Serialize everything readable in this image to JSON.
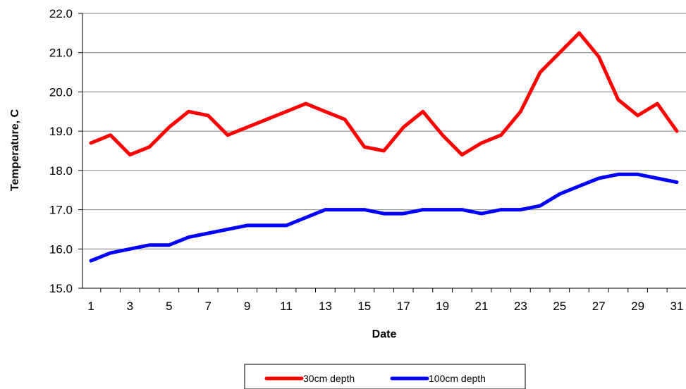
{
  "chart_data": {
    "type": "line",
    "title": "",
    "xlabel": "Date",
    "ylabel": "Temperature, C",
    "ylim": [
      15.0,
      22.0
    ],
    "yticks": [
      "15.0",
      "16.0",
      "17.0",
      "18.0",
      "19.0",
      "20.0",
      "21.0",
      "22.0"
    ],
    "xlim": [
      1,
      31
    ],
    "xticks": [
      "1",
      "3",
      "5",
      "7",
      "9",
      "11",
      "13",
      "15",
      "17",
      "19",
      "21",
      "23",
      "25",
      "27",
      "29",
      "31"
    ],
    "x": [
      1,
      2,
      3,
      4,
      5,
      6,
      7,
      8,
      9,
      10,
      11,
      12,
      13,
      14,
      15,
      16,
      17,
      18,
      19,
      20,
      21,
      22,
      23,
      24,
      25,
      26,
      27,
      28,
      29,
      30,
      31
    ],
    "grid": "horizontal",
    "legend_position": "bottom",
    "series": [
      {
        "name": "30cm depth",
        "color": "#ff0000",
        "values": [
          18.7,
          18.9,
          18.4,
          18.6,
          19.1,
          19.5,
          19.4,
          18.9,
          19.1,
          19.3,
          19.5,
          19.7,
          19.5,
          19.3,
          18.6,
          18.5,
          19.1,
          19.5,
          18.9,
          18.4,
          18.7,
          18.9,
          19.5,
          20.5,
          21.0,
          21.5,
          20.9,
          19.8,
          19.4,
          19.7,
          19.0
        ]
      },
      {
        "name": "100cm depth",
        "color": "#0000ff",
        "values": [
          15.7,
          15.9,
          16.0,
          16.1,
          16.1,
          16.3,
          16.4,
          16.5,
          16.6,
          16.6,
          16.6,
          16.8,
          17.0,
          17.0,
          17.0,
          16.9,
          16.9,
          17.0,
          17.0,
          17.0,
          16.9,
          17.0,
          17.0,
          17.1,
          17.4,
          17.6,
          17.8,
          17.9,
          17.9,
          17.8,
          17.7
        ]
      }
    ]
  }
}
